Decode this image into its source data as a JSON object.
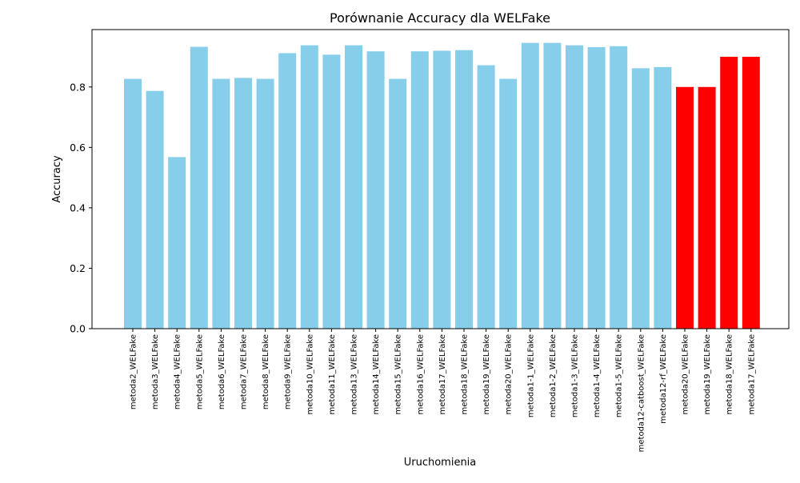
{
  "chart_data": {
    "type": "bar",
    "title": "Porównanie Accuracy dla WELFake",
    "xlabel": "Uruchomienia",
    "ylabel": "Accuracy",
    "ylim": [
      0,
      0.99
    ],
    "yticks": [
      "0.0",
      "0.2",
      "0.4",
      "0.6",
      "0.8"
    ],
    "grid": false,
    "categories": [
      "metoda2_WELFake",
      "metoda3_WELFake",
      "metoda4_WELFake",
      "metoda5_WELFake",
      "metoda6_WELFake",
      "metoda7_WELFake",
      "metoda8_WELFake",
      "metoda9_WELFake",
      "metoda10_WELFake",
      "metoda11_WELFake",
      "metoda13_WELFake",
      "metoda14_WELFake",
      "metoda15_WELFake",
      "metoda16_WELFake",
      "metoda17_WELFake",
      "metoda18_WELFake",
      "metoda19_WELFake",
      "metoda20_WELFake",
      "metoda1-1_WELFake",
      "metoda1-2_WELFake",
      "metoda1-3_WELFake",
      "metoda1-4_WELFake",
      "metoda1-5_WELFake",
      "metoda12-catboost_WELFake",
      "metoda12-rf_WELFake",
      "metoda20_WELFake",
      "metoda19_WELFake",
      "metoda18_WELFake",
      "metoda17_WELFake"
    ],
    "values": [
      0.827,
      0.787,
      0.568,
      0.933,
      0.827,
      0.83,
      0.827,
      0.912,
      0.938,
      0.907,
      0.938,
      0.918,
      0.827,
      0.918,
      0.92,
      0.922,
      0.872,
      0.827,
      0.946,
      0.946,
      0.938,
      0.932,
      0.935,
      0.862,
      0.866,
      0.8,
      0.8,
      0.9,
      0.9
    ],
    "colors": [
      "#87ceeb",
      "#87ceeb",
      "#87ceeb",
      "#87ceeb",
      "#87ceeb",
      "#87ceeb",
      "#87ceeb",
      "#87ceeb",
      "#87ceeb",
      "#87ceeb",
      "#87ceeb",
      "#87ceeb",
      "#87ceeb",
      "#87ceeb",
      "#87ceeb",
      "#87ceeb",
      "#87ceeb",
      "#87ceeb",
      "#87ceeb",
      "#87ceeb",
      "#87ceeb",
      "#87ceeb",
      "#87ceeb",
      "#87ceeb",
      "#87ceeb",
      "#ff0000",
      "#ff0000",
      "#ff0000",
      "#ff0000"
    ]
  }
}
